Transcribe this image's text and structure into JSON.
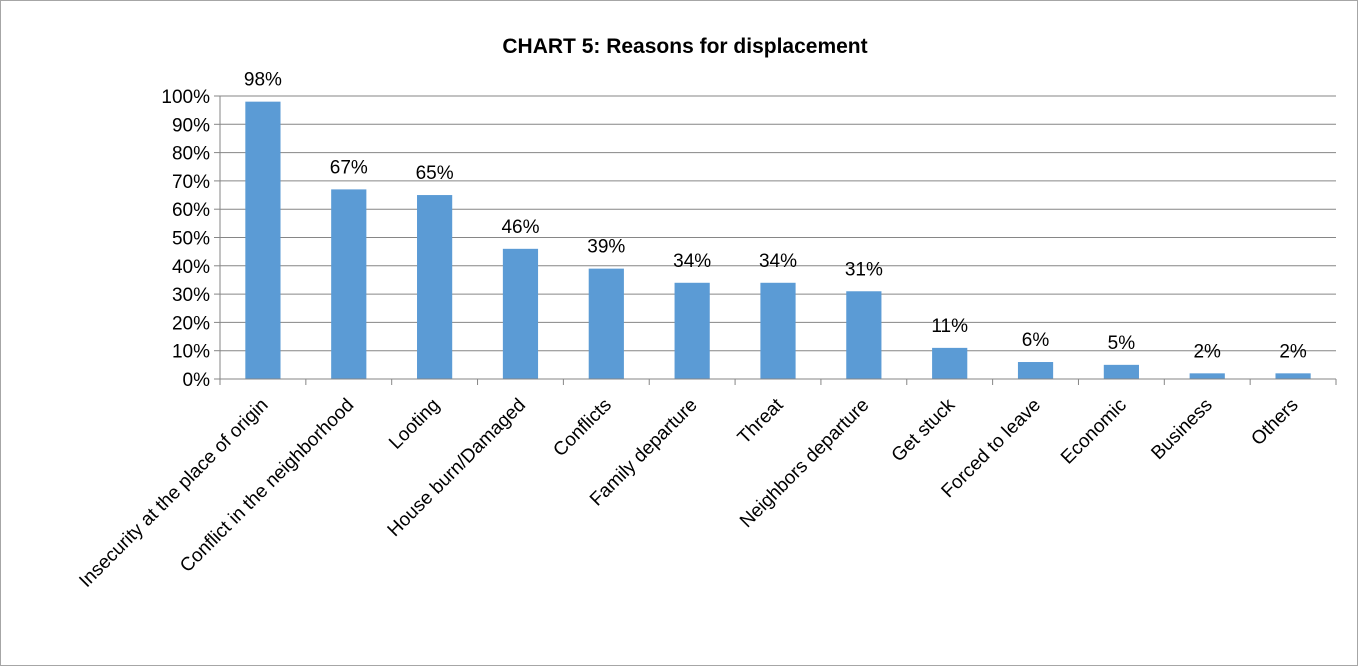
{
  "chart_data": {
    "type": "bar",
    "title": "CHART 5: Reasons for displacement",
    "categories": [
      "Insecurity at the place of origin",
      "Conflict in the neighborhood",
      "Looting",
      "House burn/Damaged",
      "Conflicts",
      "Family departure",
      "Threat",
      "Neighbors departure",
      "Get stuck",
      "Forced to leave",
      "Economic",
      "Business",
      "Others"
    ],
    "values": [
      98,
      67,
      65,
      46,
      39,
      34,
      34,
      31,
      11,
      6,
      5,
      2,
      2
    ],
    "data_labels": [
      "98%",
      "67%",
      "65%",
      "46%",
      "39%",
      "34%",
      "34%",
      "31%",
      "11%",
      "6%",
      "5%",
      "2%",
      "2%"
    ],
    "y_ticks": [
      "0%",
      "10%",
      "20%",
      "30%",
      "40%",
      "50%",
      "60%",
      "70%",
      "80%",
      "90%",
      "100%"
    ],
    "ylim": [
      0,
      100
    ],
    "grid": true,
    "legend": "none",
    "bar_color": "#5b9bd5"
  }
}
